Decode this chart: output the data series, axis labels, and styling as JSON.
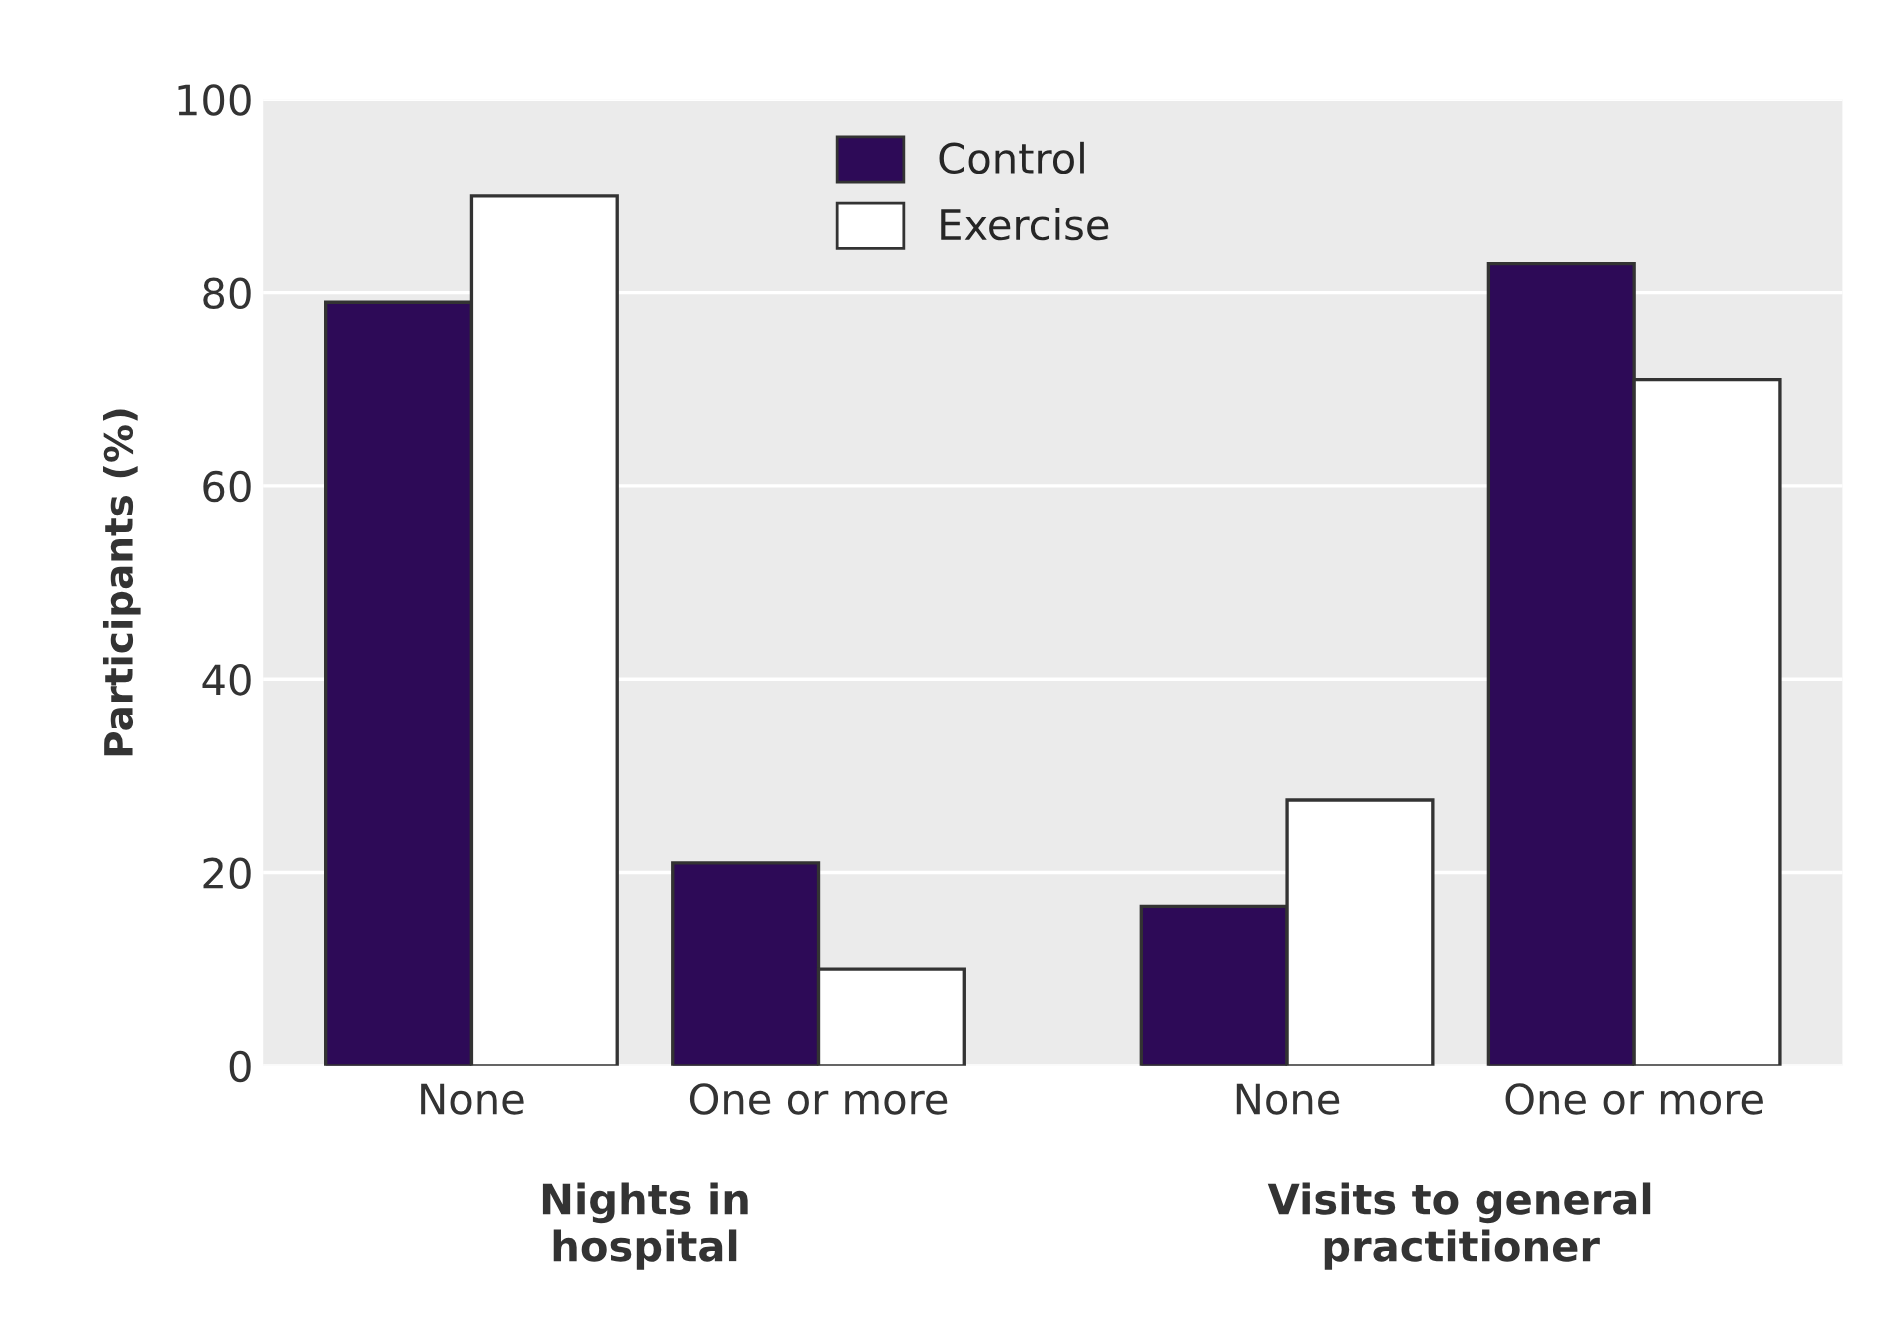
{
  "chart_data": {
    "type": "bar",
    "ylabel": "Participants (%)",
    "categories": [
      "None",
      "One or more",
      "None",
      "One or more"
    ],
    "series": [
      {
        "name": "Control",
        "color": "#2d0a57",
        "values": [
          79,
          21,
          16.5,
          83
        ]
      },
      {
        "name": "Exercise",
        "color": "#ffffff",
        "values": [
          90,
          10,
          27.5,
          71
        ]
      }
    ],
    "ylim": [
      0,
      100
    ],
    "yticks": [
      0,
      20,
      40,
      60,
      80,
      100
    ],
    "grid": "y",
    "legend": "top",
    "annotations": [
      "Nights in\nhospital",
      "Visits to general\npractitioner"
    ]
  }
}
